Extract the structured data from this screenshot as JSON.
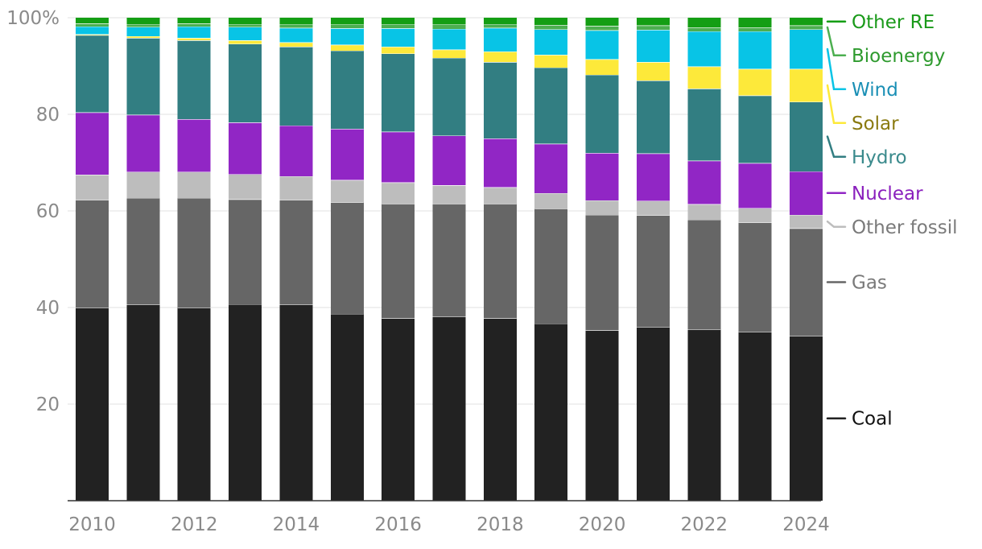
{
  "chart_data": {
    "type": "bar",
    "stacked": true,
    "title": "",
    "xlabel": "",
    "ylabel": "",
    "ylim": [
      0,
      100
    ],
    "y_ticks": [
      {
        "value": 20,
        "label": "20"
      },
      {
        "value": 40,
        "label": "40"
      },
      {
        "value": 60,
        "label": "60"
      },
      {
        "value": 80,
        "label": "80"
      },
      {
        "value": 100,
        "label": "100%"
      }
    ],
    "x_tick_labels": [
      "2010",
      "2012",
      "2014",
      "2016",
      "2018",
      "2020",
      "2022",
      "2024"
    ],
    "categories": [
      "2010",
      "2011",
      "2012",
      "2013",
      "2014",
      "2015",
      "2016",
      "2017",
      "2018",
      "2019",
      "2020",
      "2021",
      "2022",
      "2023",
      "2024"
    ],
    "grid": "horizontal",
    "legend": "right, inline labels aligned to last bar",
    "series": [
      {
        "name": "Coal",
        "color": "#222222",
        "label_color": "#111111",
        "values": [
          40.0,
          40.6,
          40.0,
          40.7,
          40.6,
          38.7,
          37.8,
          38.1,
          37.8,
          36.7,
          35.3,
          36.0,
          35.5,
          35.0,
          34.1
        ]
      },
      {
        "name": "Gas",
        "color": "#666666",
        "label_color": "#7a7a7a",
        "values": [
          22.3,
          22.1,
          22.7,
          21.7,
          21.7,
          23.1,
          23.7,
          23.4,
          23.7,
          23.8,
          23.9,
          23.1,
          22.7,
          22.6,
          22.3
        ]
      },
      {
        "name": "Other fossil",
        "color": "#bdbdbd",
        "label_color": "#7a7a7a",
        "values": [
          5.2,
          5.4,
          5.4,
          5.2,
          4.9,
          4.6,
          4.4,
          3.8,
          3.4,
          3.2,
          3.0,
          3.0,
          3.2,
          3.0,
          2.8
        ]
      },
      {
        "name": "Nuclear",
        "color": "#9126c5",
        "label_color": "#8a1fbd",
        "values": [
          12.9,
          11.8,
          10.9,
          10.7,
          10.5,
          10.6,
          10.5,
          10.3,
          10.1,
          10.2,
          9.8,
          9.8,
          9.0,
          9.3,
          9.0
        ]
      },
      {
        "name": "Hydro",
        "color": "#327e82",
        "label_color": "#3a8a8c",
        "values": [
          16.0,
          15.9,
          16.3,
          16.3,
          16.3,
          16.2,
          16.2,
          16.1,
          15.8,
          15.8,
          16.2,
          15.1,
          14.9,
          14.0,
          14.4
        ]
      },
      {
        "name": "Solar",
        "color": "#fde93a",
        "label_color": "#8a7a10",
        "values": [
          0.2,
          0.4,
          0.5,
          0.7,
          0.9,
          1.2,
          1.4,
          1.7,
          2.2,
          2.6,
          3.2,
          3.8,
          4.6,
          5.5,
          6.8
        ]
      },
      {
        "name": "Wind",
        "color": "#08c4e6",
        "label_color": "#1a8fb5",
        "values": [
          1.6,
          1.9,
          2.4,
          2.8,
          3.0,
          3.4,
          3.8,
          4.3,
          4.9,
          5.3,
          6.0,
          6.7,
          7.3,
          7.8,
          8.2
        ]
      },
      {
        "name": "Bioenergy",
        "color": "#4caf50",
        "label_color": "#2e9a2e",
        "values": [
          0.6,
          0.6,
          0.6,
          0.6,
          0.7,
          0.8,
          0.9,
          0.9,
          0.8,
          0.9,
          0.9,
          0.9,
          0.8,
          0.8,
          0.8
        ]
      },
      {
        "name": "Other RE",
        "color": "#149e14",
        "label_color": "#1a9a1a",
        "values": [
          1.2,
          1.3,
          1.2,
          1.3,
          1.4,
          1.4,
          1.3,
          1.4,
          1.3,
          1.5,
          1.7,
          1.6,
          2.0,
          2.0,
          1.6
        ]
      }
    ]
  }
}
